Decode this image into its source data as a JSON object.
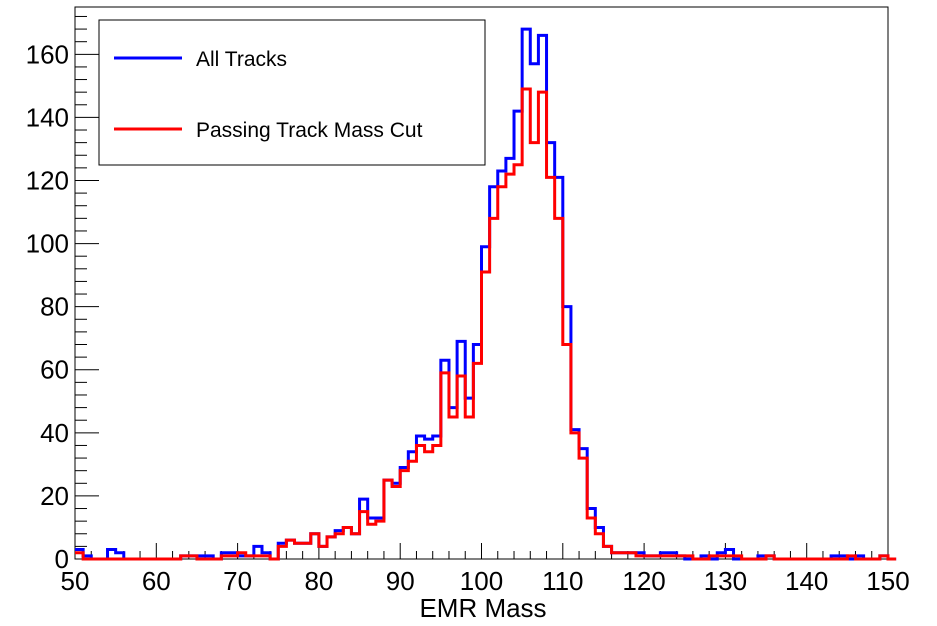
{
  "chart_data": {
    "type": "histogram",
    "xlabel": "EMR Mass",
    "ylabel": "",
    "xlim": [
      50,
      150
    ],
    "ylim": [
      0,
      175
    ],
    "bin_width": 1,
    "x_ticks": [
      "50",
      "60",
      "70",
      "80",
      "90",
      "100",
      "110",
      "120",
      "130",
      "140",
      "150"
    ],
    "y_ticks": [
      "0",
      "20",
      "40",
      "60",
      "80",
      "100",
      "120",
      "140",
      "160"
    ],
    "legend_position": "top-left",
    "grid": false,
    "series": [
      {
        "name": "All Tracks",
        "color": "#0000ff",
        "values": [
          3,
          1,
          0,
          0,
          3,
          2,
          0,
          0,
          0,
          0,
          0,
          0,
          0,
          1,
          1,
          1,
          1,
          0,
          2,
          2,
          1,
          1,
          4,
          2,
          0,
          5,
          6,
          5,
          5,
          8,
          4,
          7,
          9,
          10,
          8,
          19,
          13,
          13,
          25,
          24,
          29,
          34,
          39,
          38,
          39,
          63,
          48,
          69,
          51,
          68,
          99,
          118,
          123,
          127,
          142,
          168,
          157,
          166,
          132,
          121,
          80,
          41,
          35,
          16,
          10,
          4,
          2,
          2,
          2,
          2,
          1,
          1,
          2,
          2,
          1,
          0,
          0,
          1,
          0,
          2,
          3,
          0,
          0,
          0,
          1,
          1,
          0,
          0,
          0,
          0,
          0,
          0,
          0,
          1,
          1,
          0,
          1,
          0,
          0,
          1,
          0
        ],
        "start": 50
      },
      {
        "name": "Passing Track Mass Cut",
        "color": "#ff0000",
        "values": [
          2,
          0,
          0,
          0,
          0,
          0,
          0,
          0,
          0,
          0,
          0,
          0,
          0,
          1,
          1,
          0,
          0,
          0,
          1,
          1,
          2,
          1,
          1,
          1,
          0,
          4,
          6,
          5,
          5,
          8,
          4,
          7,
          8,
          10,
          8,
          15,
          11,
          12,
          25,
          23,
          28,
          31,
          36,
          34,
          36,
          59,
          45,
          58,
          45,
          62,
          91,
          108,
          118,
          122,
          125,
          149,
          132,
          148,
          121,
          108,
          68,
          40,
          32,
          13,
          8,
          4,
          2,
          2,
          2,
          1,
          1,
          1,
          1,
          1,
          1,
          1,
          0,
          0,
          1,
          1,
          1,
          1,
          0,
          0,
          0,
          1,
          0,
          0,
          0,
          0,
          0,
          0,
          0,
          0,
          0,
          1,
          0,
          0,
          0,
          1,
          0
        ],
        "start": 50
      }
    ]
  }
}
